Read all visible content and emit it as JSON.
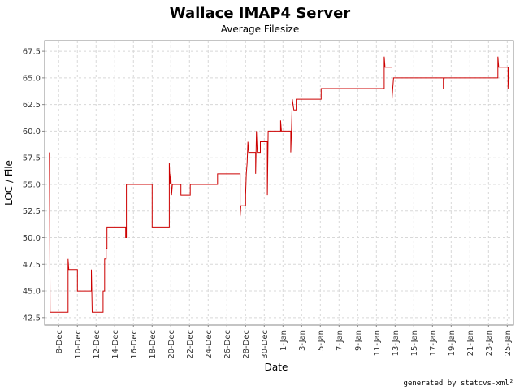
{
  "chart_data": {
    "type": "line",
    "title": "Wallace IMAP4 Server",
    "subtitle": "Average Filesize",
    "xlabel": "Date",
    "ylabel": "LOC / File",
    "ylim": [
      41.8,
      68.5
    ],
    "xlim": [
      "2005-12-06T12:00",
      "2006-01-25T16:00"
    ],
    "y_ticks": [
      "42.5",
      "45.0",
      "47.5",
      "50.0",
      "52.5",
      "55.0",
      "57.5",
      "60.0",
      "62.5",
      "65.0",
      "67.5"
    ],
    "x_ticks": [
      "8-Dec",
      "10-Dec",
      "12-Dec",
      "14-Dec",
      "16-Dec",
      "18-Dec",
      "20-Dec",
      "22-Dec",
      "24-Dec",
      "26-Dec",
      "28-Dec",
      "30-Dec",
      "1-Jan",
      "3-Jan",
      "5-Jan",
      "7-Jan",
      "9-Jan",
      "11-Jan",
      "13-Jan",
      "15-Jan",
      "17-Jan",
      "19-Jan",
      "21-Jan",
      "23-Jan",
      "25-Jan"
    ],
    "grid": true,
    "color": "#cc0000",
    "series": [
      {
        "points": [
          [
            "2005-12-07T00:00",
            58
          ],
          [
            "2005-12-07T02:00",
            43
          ],
          [
            "2005-12-09T00:00",
            43
          ],
          [
            "2005-12-09T00:00",
            48
          ],
          [
            "2005-12-09T02:00",
            47
          ],
          [
            "2005-12-10T00:00",
            47
          ],
          [
            "2005-12-10T00:00",
            45
          ],
          [
            "2005-12-11T12:00",
            45
          ],
          [
            "2005-12-11T12:00",
            47
          ],
          [
            "2005-12-11T14:00",
            43
          ],
          [
            "2005-12-12T18:00",
            43
          ],
          [
            "2005-12-12T18:00",
            45
          ],
          [
            "2005-12-12T22:00",
            45
          ],
          [
            "2005-12-12T22:00",
            48
          ],
          [
            "2005-12-13T02:00",
            48
          ],
          [
            "2005-12-13T02:00",
            49
          ],
          [
            "2005-12-13T04:00",
            49
          ],
          [
            "2005-12-13T04:00",
            51
          ],
          [
            "2005-12-15T04:00",
            51
          ],
          [
            "2005-12-15T04:00",
            50
          ],
          [
            "2005-12-15T06:00",
            50
          ],
          [
            "2005-12-15T06:00",
            55
          ],
          [
            "2005-12-18T00:00",
            55
          ],
          [
            "2005-12-18T00:00",
            51
          ],
          [
            "2005-12-19T20:00",
            51
          ],
          [
            "2005-12-19T20:00",
            57
          ],
          [
            "2005-12-19T22:00",
            55
          ],
          [
            "2005-12-20T00:00",
            56
          ],
          [
            "2005-12-20T02:00",
            54
          ],
          [
            "2005-12-20T04:00",
            55
          ],
          [
            "2005-12-21T02:00",
            55
          ],
          [
            "2005-12-21T02:00",
            54
          ],
          [
            "2005-12-22T02:00",
            54
          ],
          [
            "2005-12-22T02:00",
            55
          ],
          [
            "2005-12-25T00:00",
            55
          ],
          [
            "2005-12-25T00:00",
            56
          ],
          [
            "2005-12-27T10:00",
            56
          ],
          [
            "2005-12-27T10:00",
            52
          ],
          [
            "2005-12-27T12:00",
            53
          ],
          [
            "2005-12-28T00:00",
            53
          ],
          [
            "2005-12-28T00:00",
            54
          ],
          [
            "2005-12-28T02:00",
            56
          ],
          [
            "2005-12-28T04:00",
            57
          ],
          [
            "2005-12-28T06:00",
            59
          ],
          [
            "2005-12-28T08:00",
            58
          ],
          [
            "2005-12-29T02:00",
            58
          ],
          [
            "2005-12-29T02:00",
            56
          ],
          [
            "2005-12-29T04:00",
            60
          ],
          [
            "2005-12-29T06:00",
            58
          ],
          [
            "2005-12-29T14:00",
            58
          ],
          [
            "2005-12-29T14:00",
            59
          ],
          [
            "2005-12-30T08:00",
            59
          ],
          [
            "2005-12-30T08:00",
            54
          ],
          [
            "2005-12-30T10:00",
            60
          ],
          [
            "2005-12-31T18:00",
            60
          ],
          [
            "2005-12-31T18:00",
            61
          ],
          [
            "2005-12-31T20:00",
            60
          ],
          [
            "2006-01-01T20:00",
            60
          ],
          [
            "2006-01-01T20:00",
            58
          ],
          [
            "2006-01-01T22:00",
            60
          ],
          [
            "2006-01-02T00:00",
            63
          ],
          [
            "2006-01-02T04:00",
            62
          ],
          [
            "2006-01-02T10:00",
            62
          ],
          [
            "2006-01-02T10:00",
            63
          ],
          [
            "2006-01-05T02:00",
            63
          ],
          [
            "2006-01-05T02:00",
            64
          ],
          [
            "2006-01-11T20:00",
            64
          ],
          [
            "2006-01-11T20:00",
            67
          ],
          [
            "2006-01-11T22:00",
            66
          ],
          [
            "2006-01-12T16:00",
            66
          ],
          [
            "2006-01-12T16:00",
            63
          ],
          [
            "2006-01-12T18:00",
            64
          ],
          [
            "2006-01-12T20:00",
            65
          ],
          [
            "2006-01-18T04:00",
            65
          ],
          [
            "2006-01-18T04:00",
            64
          ],
          [
            "2006-01-18T06:00",
            65
          ],
          [
            "2006-01-24T00:00",
            65
          ],
          [
            "2006-01-24T00:00",
            67
          ],
          [
            "2006-01-24T02:00",
            66
          ],
          [
            "2006-01-25T02:00",
            66
          ],
          [
            "2006-01-25T02:00",
            64
          ],
          [
            "2006-01-25T04:00",
            66
          ]
        ]
      }
    ]
  },
  "footer": "generated by statcvs-xml²"
}
